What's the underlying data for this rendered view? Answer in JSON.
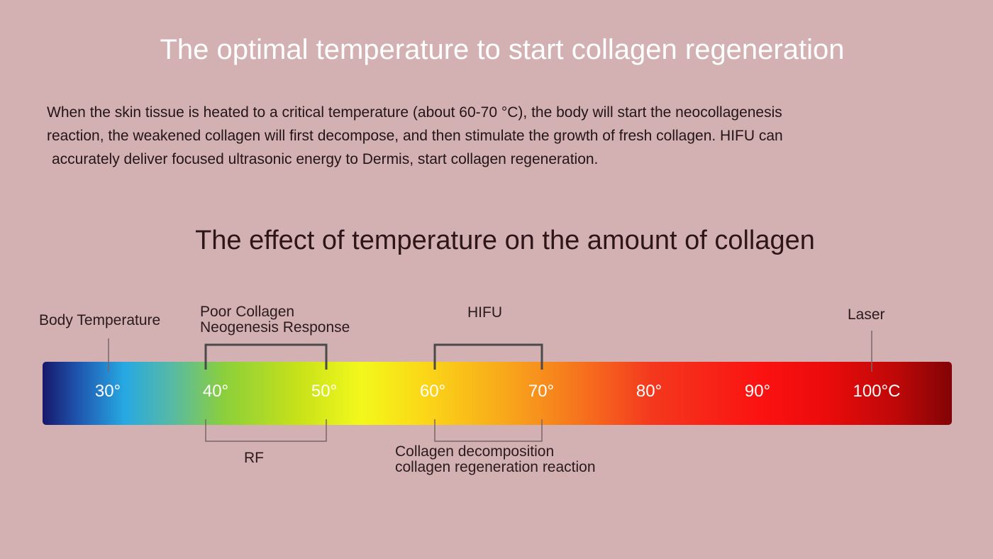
{
  "title": "The optimal temperature to start collagen regeneration",
  "intro": {
    "line1": "When the skin tissue is heated to a critical temperature (about 60-70 °C), the body will start the neocollagenesis",
    "line2": "reaction, the weakened collagen will first decompose, and then stimulate the growth of fresh collagen. HIFU can",
    "line3": "accurately deliver focused ultrasonic energy to Dermis, start collagen regeneration."
  },
  "subtitle": "The effect of temperature on the amount of collagen",
  "scale": {
    "ticks": [
      "30°",
      "40°",
      "50°",
      "60°",
      "70°",
      "80°",
      "90°",
      "100°C"
    ],
    "labels": {
      "body_temperature": "Body Temperature",
      "poor_line1": "Poor Collagen",
      "poor_line2": "Neogenesis Response",
      "hifu": "HIFU",
      "laser": "Laser",
      "rf": "RF",
      "decomp_line1": "Collagen decomposition",
      "decomp_line2": "collagen regeneration reaction"
    }
  },
  "colors": {
    "background": "#d3b1b3",
    "bracket": "#4a4a4a",
    "bar_start": "#17186b",
    "bar_end": "#820306"
  }
}
